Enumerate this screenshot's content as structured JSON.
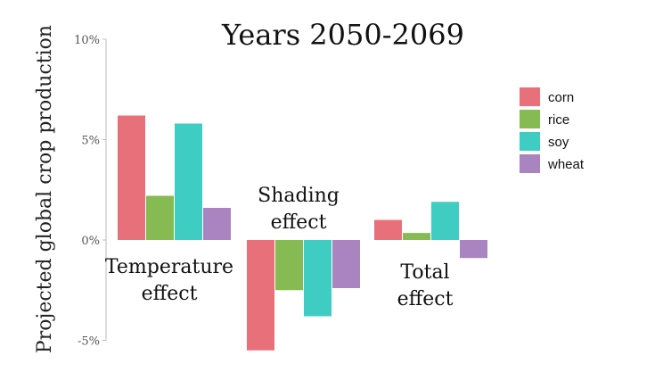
{
  "chart_data": {
    "type": "bar",
    "title": "Years 2050-2069",
    "ylabel": "Projected global crop production",
    "xlabel": "",
    "ylim": [
      -5,
      10
    ],
    "yticks": [
      {
        "value": -5,
        "label": "-5%"
      },
      {
        "value": 0,
        "label": "0%"
      },
      {
        "value": 5,
        "label": "5%"
      },
      {
        "value": 10,
        "label": "10%"
      }
    ],
    "categories": [
      {
        "lines": [
          "Temperature",
          "effect"
        ]
      },
      {
        "lines": [
          "Shading",
          "effect"
        ]
      },
      {
        "lines": [
          "Total",
          "effect"
        ]
      }
    ],
    "series": [
      {
        "name": "corn",
        "color": "#e8707a",
        "values": [
          6.2,
          -5.5,
          1.0
        ]
      },
      {
        "name": "rice",
        "color": "#85bb52",
        "values": [
          2.2,
          -2.5,
          0.35
        ]
      },
      {
        "name": "soy",
        "color": "#3fcdc3",
        "values": [
          5.8,
          -3.8,
          1.9
        ]
      },
      {
        "name": "wheat",
        "color": "#aa84c0",
        "values": [
          1.6,
          -2.4,
          -0.9
        ]
      }
    ],
    "grid": false,
    "legend_position": "right"
  }
}
